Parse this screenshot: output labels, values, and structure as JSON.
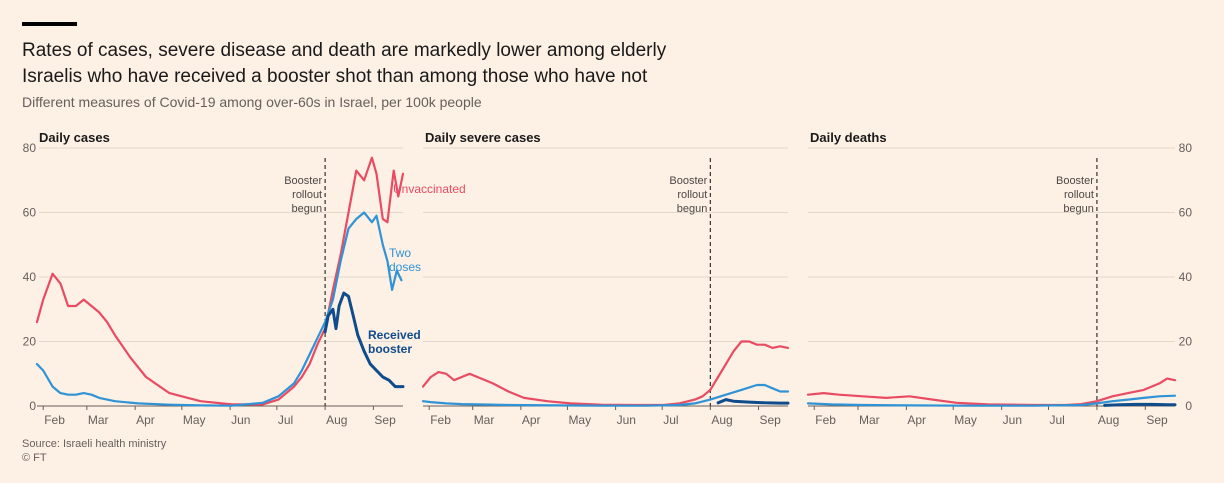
{
  "title_line1": "Rates of cases, severe disease and death are markedly lower among elderly",
  "title_line2": "Israelis who have received a booster shot than among those who have not",
  "subtitle": "Different measures of Covid-19 among over-60s in Israel, per 100k people",
  "source": "Source: Israeli health ministry",
  "credit": "© FT",
  "colors": {
    "unvaccinated": "#e94b62",
    "two_doses": "#2f93d6",
    "booster": "#0f4c8c",
    "grid": "#e2d7cd",
    "axis": "#66605c"
  },
  "chart_data": [
    {
      "type": "line",
      "title": "Daily cases",
      "months": [
        "Feb",
        "Mar",
        "Apr",
        "May",
        "Jun",
        "Jul",
        "Aug",
        "Sep"
      ],
      "yticks": [
        0,
        20,
        40,
        60,
        80
      ],
      "ylim": [
        0,
        80
      ],
      "x_unit": "days since 1 Feb (2021); Aug 1 = 181",
      "xlim": [
        -4,
        231
      ],
      "annotation": {
        "lines": [
          "Booster",
          "rollout",
          "begun"
        ],
        "x": 181
      },
      "series": [
        {
          "name": "Unvaccinated",
          "label_lines": [
            "Unvaccinated"
          ],
          "color_key": "unvaccinated",
          "x": [
            -4,
            0,
            6,
            11,
            16,
            21,
            26,
            31,
            36,
            41,
            46,
            56,
            66,
            81,
            101,
            121,
            141,
            151,
            161,
            166,
            171,
            176,
            181,
            186,
            191,
            196,
            201,
            206,
            211,
            214,
            218,
            221,
            225,
            228,
            231
          ],
          "y": [
            26,
            33,
            41,
            38,
            31,
            31,
            33,
            31,
            29,
            26,
            22,
            15,
            9,
            4,
            1.5,
            0.5,
            0.5,
            2,
            6,
            9,
            13,
            19,
            24,
            36,
            47,
            60,
            73,
            70,
            77,
            72,
            58,
            57,
            73,
            65,
            72
          ]
        },
        {
          "name": "Two doses",
          "label_lines": [
            "Two",
            "doses"
          ],
          "color_key": "two_doses",
          "x": [
            -4,
            0,
            6,
            11,
            16,
            21,
            26,
            31,
            36,
            46,
            61,
            81,
            101,
            121,
            141,
            151,
            161,
            166,
            171,
            176,
            181,
            186,
            191,
            196,
            201,
            206,
            211,
            214,
            218,
            221,
            224,
            227,
            230
          ],
          "y": [
            13,
            11,
            6,
            4,
            3.5,
            3.5,
            4,
            3.5,
            2.5,
            1.5,
            0.8,
            0.4,
            0.2,
            0.1,
            1,
            3,
            7,
            11,
            16,
            21,
            26,
            33,
            45,
            55,
            58,
            60,
            57,
            59,
            50,
            45,
            36,
            42,
            39
          ]
        },
        {
          "name": "Received booster",
          "label_lines": [
            "Received",
            "booster"
          ],
          "color_key": "booster",
          "x": [
            181,
            183,
            186,
            188,
            190,
            193,
            196,
            199,
            202,
            206,
            210,
            214,
            218,
            222,
            226,
            231
          ],
          "y": [
            23,
            28,
            30,
            24,
            31,
            35,
            34,
            28,
            22,
            17,
            13,
            11,
            9,
            8,
            6,
            6
          ]
        }
      ]
    },
    {
      "type": "line",
      "title": "Daily severe cases",
      "months": [
        "Feb",
        "Mar",
        "Apr",
        "May",
        "Jun",
        "Jul",
        "Aug",
        "Sep"
      ],
      "yticks": [
        0,
        20,
        40,
        60,
        80
      ],
      "ylim": [
        0,
        80
      ],
      "x_unit": "days since 1 Feb (2021); Aug 1 = 181",
      "xlim": [
        -4,
        231
      ],
      "annotation": {
        "lines": [
          "Booster",
          "rollout",
          "begun"
        ],
        "x": 181
      },
      "series": [
        {
          "name": "Unvaccinated",
          "label_lines": [],
          "color_key": "unvaccinated",
          "x": [
            -4,
            1,
            6,
            11,
            16,
            21,
            26,
            31,
            41,
            51,
            61,
            76,
            91,
            111,
            131,
            151,
            161,
            171,
            176,
            181,
            186,
            191,
            196,
            201,
            206,
            211,
            216,
            221,
            226,
            231
          ],
          "y": [
            6,
            9,
            10.5,
            10,
            8,
            9,
            10,
            9,
            7,
            4.5,
            2.5,
            1.5,
            0.8,
            0.4,
            0.3,
            0.3,
            0.8,
            2,
            3,
            5,
            9,
            13,
            17,
            20,
            20,
            19,
            19,
            18,
            18.5,
            18
          ]
        },
        {
          "name": "Two doses",
          "label_lines": [],
          "color_key": "two_doses",
          "x": [
            -4,
            1,
            11,
            21,
            31,
            51,
            81,
            111,
            141,
            161,
            171,
            181,
            191,
            201,
            211,
            216,
            221,
            226,
            231
          ],
          "y": [
            1.5,
            1.2,
            0.8,
            0.6,
            0.5,
            0.3,
            0.2,
            0.1,
            0.1,
            0.3,
            0.8,
            2,
            3.5,
            5,
            6.5,
            6.5,
            5.5,
            4.5,
            4.5
          ]
        },
        {
          "name": "Received booster",
          "label_lines": [],
          "color_key": "booster",
          "x": [
            186,
            191,
            196,
            206,
            216,
            226,
            231
          ],
          "y": [
            1,
            2,
            1.5,
            1.2,
            1.0,
            0.9,
            0.9
          ]
        }
      ]
    },
    {
      "type": "line",
      "title": "Daily deaths",
      "months": [
        "Feb",
        "Mar",
        "Apr",
        "May",
        "Jun",
        "Jul",
        "Aug",
        "Sep"
      ],
      "yticks": [
        0,
        20,
        40,
        60,
        80
      ],
      "ylim": [
        0,
        80
      ],
      "x_unit": "days since 1 Feb (2021); Aug 1 = 181",
      "xlim": [
        -4,
        231
      ],
      "annotation": {
        "lines": [
          "Booster",
          "rollout",
          "begun"
        ],
        "x": 181
      },
      "series": [
        {
          "name": "Unvaccinated",
          "label_lines": [],
          "color_key": "unvaccinated",
          "x": [
            -4,
            6,
            16,
            31,
            46,
            61,
            76,
            91,
            111,
            141,
            161,
            171,
            181,
            191,
            201,
            211,
            216,
            221,
            226,
            231
          ],
          "y": [
            3.5,
            4,
            3.5,
            3,
            2.5,
            3,
            2,
            1,
            0.5,
            0.3,
            0.3,
            0.6,
            1.5,
            3,
            4,
            5,
            6,
            7,
            8.5,
            8
          ]
        },
        {
          "name": "Two doses",
          "label_lines": [],
          "color_key": "two_doses",
          "x": [
            -4,
            11,
            31,
            61,
            101,
            141,
            171,
            181,
            191,
            201,
            211,
            221,
            231
          ],
          "y": [
            0.8,
            0.5,
            0.3,
            0.2,
            0.1,
            0.1,
            0.3,
            0.8,
            1.5,
            2,
            2.5,
            3,
            3.2
          ]
        },
        {
          "name": "Received booster",
          "label_lines": [],
          "color_key": "booster",
          "x": [
            186,
            196,
            206,
            216,
            226,
            231
          ],
          "y": [
            0.2,
            0.4,
            0.5,
            0.5,
            0.4,
            0.4
          ]
        }
      ]
    }
  ]
}
